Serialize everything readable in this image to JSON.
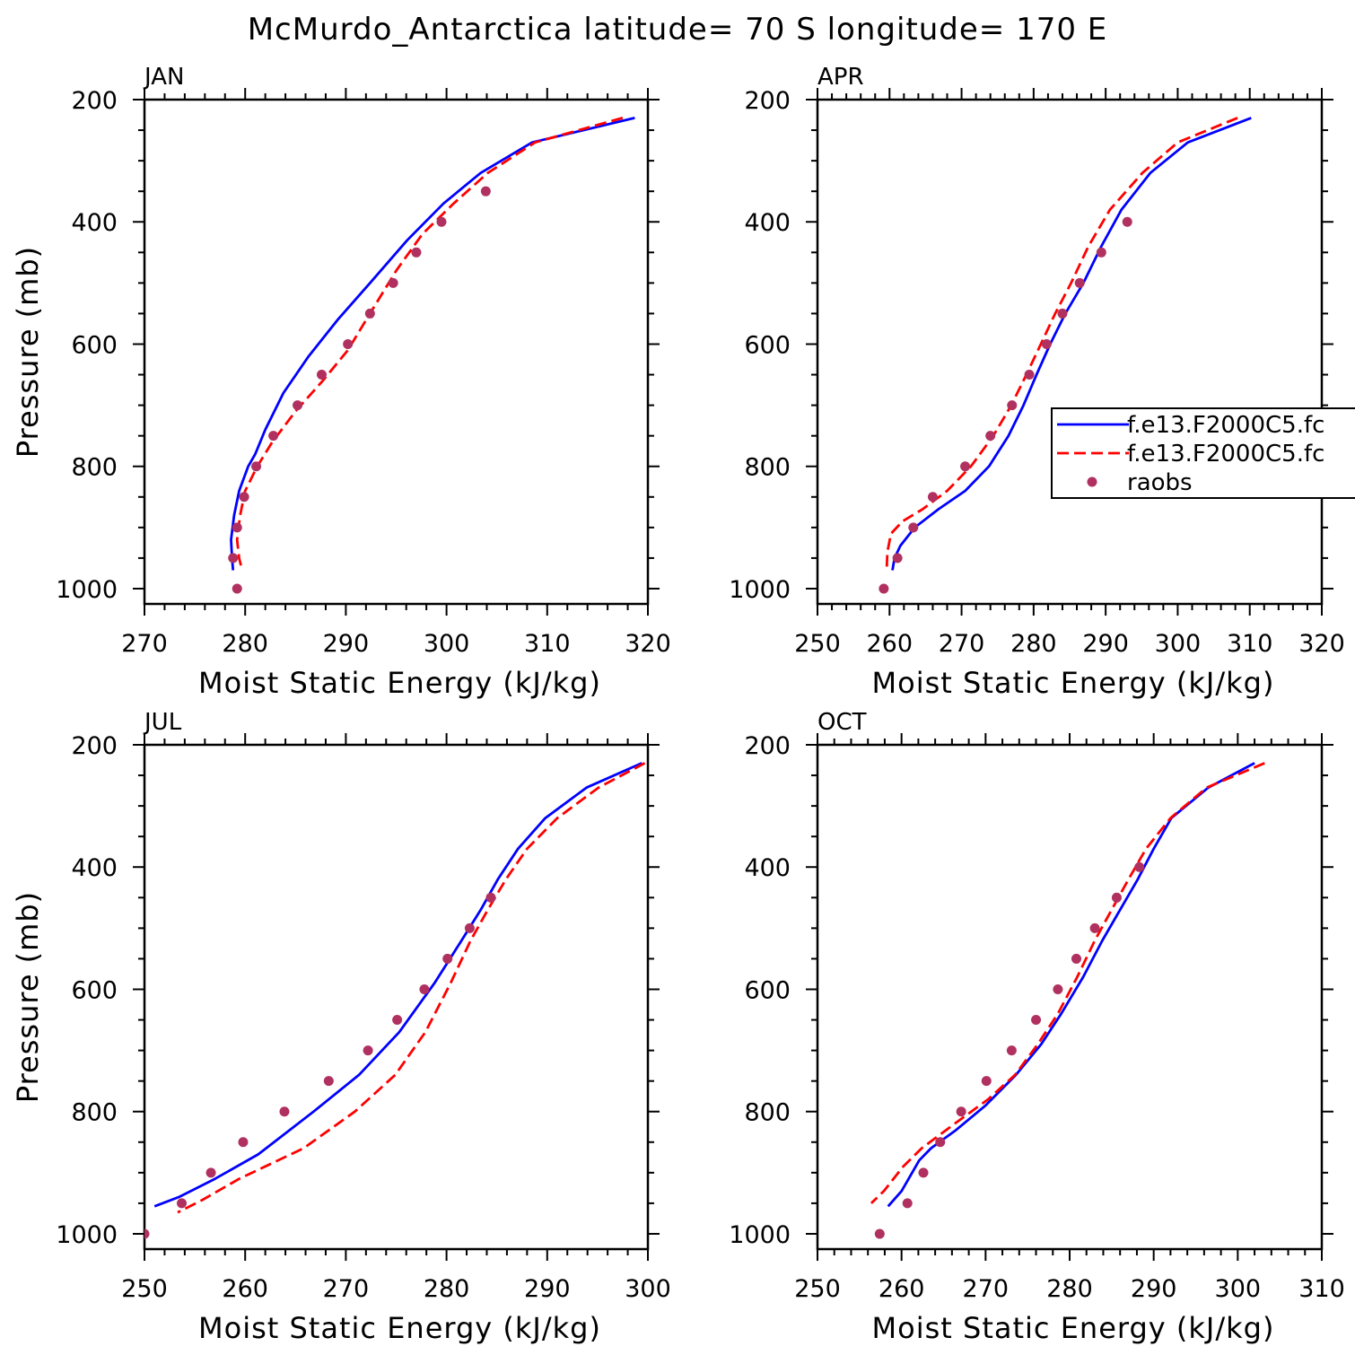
{
  "title": "McMurdo_Antarctica  latitude= 70 S longitude= 170 E",
  "colors": {
    "series1": "#0000ff",
    "series2": "#ff0000",
    "raobs": "#b03060"
  },
  "legend": {
    "panel": 1,
    "entries": [
      {
        "label": "f.e13.F2000C5.fc",
        "style": "solid",
        "color": "#0000ff"
      },
      {
        "label": "f.e13.F2000C5.fc",
        "style": "dashed",
        "color": "#ff0000"
      },
      {
        "label": "raobs",
        "style": "dot",
        "color": "#b03060"
      }
    ]
  },
  "chart_data": [
    {
      "type": "line",
      "panel_label": "JAN",
      "xlabel": "Moist Static Energy (kJ/kg)",
      "ylabel": "Pressure (mb)",
      "xlim": [
        270,
        320
      ],
      "ylim": [
        200,
        1025
      ],
      "xticks": [
        270,
        280,
        290,
        300,
        310,
        320
      ],
      "yticks": [
        200,
        400,
        600,
        800,
        1000
      ],
      "series": [
        {
          "name": "f.e13.F2000C5.fc (solid)",
          "style": "solid",
          "x": [
            318.7,
            308.5,
            303.4,
            299.7,
            296.1,
            292.4,
            289.2,
            286.3,
            283.8,
            282.0,
            281.0,
            280.3,
            279.4,
            278.9,
            278.6,
            278.7,
            278.8
          ],
          "y": [
            230,
            270,
            320,
            370,
            430,
            500,
            560,
            620,
            680,
            740,
            780,
            800,
            840,
            880,
            920,
            950,
            970
          ]
        },
        {
          "name": "f.e13.F2000C5.fc (dashed)",
          "style": "dashed",
          "x": [
            317.5,
            308.8,
            304.1,
            300.7,
            297.6,
            295.0,
            292.4,
            290.2,
            287.7,
            285.0,
            282.7,
            281.2,
            280.0,
            279.5,
            279.2,
            279.4,
            279.7
          ],
          "y": [
            230,
            270,
            320,
            370,
            420,
            480,
            550,
            610,
            660,
            710,
            760,
            800,
            840,
            880,
            920,
            950,
            970
          ]
        },
        {
          "name": "raobs",
          "style": "dot",
          "x": [
            303.9,
            299.5,
            297.0,
            294.7,
            292.4,
            290.2,
            287.6,
            285.2,
            282.8,
            281.1,
            279.9,
            279.2,
            278.8,
            279.2
          ],
          "y": [
            350,
            400,
            450,
            500,
            550,
            600,
            650,
            700,
            750,
            800,
            850,
            900,
            950,
            1000
          ]
        }
      ]
    },
    {
      "type": "line",
      "panel_label": "APR",
      "xlabel": "Moist Static Energy (kJ/kg)",
      "ylabel": "",
      "xlim": [
        250,
        320
      ],
      "ylim": [
        200,
        1025
      ],
      "xticks": [
        250,
        260,
        270,
        280,
        290,
        300,
        310,
        320
      ],
      "yticks": [
        200,
        400,
        600,
        800,
        1000
      ],
      "series": [
        {
          "name": "f.e13.F2000C5.fc (solid)",
          "style": "solid",
          "x": [
            310.2,
            301.4,
            296.2,
            292.2,
            289.4,
            286.9,
            284.4,
            282.3,
            280.4,
            278.6,
            276.5,
            273.8,
            270.5,
            266.8,
            263.5,
            261.5,
            260.7,
            260.4
          ],
          "y": [
            230,
            270,
            320,
            380,
            440,
            500,
            550,
            600,
            650,
            700,
            750,
            800,
            840,
            870,
            900,
            930,
            950,
            970
          ]
        },
        {
          "name": "f.e13.F2000C5.fc (dashed)",
          "style": "dashed",
          "x": [
            308.3,
            300.0,
            295.1,
            290.6,
            287.6,
            285.2,
            283.0,
            281.0,
            279.0,
            276.9,
            274.4,
            271.3,
            268.0,
            264.6,
            261.8,
            260.2,
            259.7,
            259.6
          ],
          "y": [
            230,
            270,
            320,
            380,
            440,
            500,
            550,
            600,
            650,
            700,
            750,
            800,
            840,
            870,
            890,
            910,
            940,
            970
          ]
        },
        {
          "name": "raobs",
          "style": "dot",
          "x": [
            293.0,
            289.4,
            286.4,
            284.0,
            281.8,
            279.4,
            277.0,
            274.0,
            270.5,
            266.0,
            263.3,
            261.1,
            259.2
          ],
          "y": [
            400,
            450,
            500,
            550,
            600,
            650,
            700,
            750,
            800,
            850,
            900,
            950,
            1000
          ]
        }
      ]
    },
    {
      "type": "line",
      "panel_label": "JUL",
      "xlabel": "Moist Static Energy (kJ/kg)",
      "ylabel": "Pressure (mb)",
      "xlim": [
        250,
        300
      ],
      "ylim": [
        200,
        1025
      ],
      "xticks": [
        250,
        260,
        270,
        280,
        290,
        300
      ],
      "yticks": [
        200,
        400,
        600,
        800,
        1000
      ],
      "series": [
        {
          "name": "f.e13.F2000C5.fc (solid)",
          "style": "solid",
          "x": [
            299.4,
            293.9,
            289.8,
            287.1,
            285.1,
            283.4,
            281.5,
            278.8,
            275.3,
            271.3,
            266.8,
            261.3,
            257.0,
            253.4,
            251.0
          ],
          "y": [
            230,
            270,
            320,
            370,
            420,
            470,
            520,
            590,
            670,
            740,
            800,
            870,
            910,
            940,
            955
          ]
        },
        {
          "name": "f.e13.F2000C5.fc (dashed)",
          "style": "dashed",
          "x": [
            299.7,
            295.1,
            291.0,
            288.0,
            285.9,
            284.1,
            282.4,
            280.4,
            277.9,
            274.9,
            270.9,
            265.8,
            259.4,
            255.7,
            253.3
          ],
          "y": [
            230,
            270,
            320,
            370,
            420,
            470,
            520,
            590,
            670,
            740,
            800,
            860,
            910,
            945,
            965
          ]
        },
        {
          "name": "raobs",
          "style": "dot",
          "x": [
            284.4,
            282.3,
            280.1,
            277.8,
            275.1,
            272.2,
            268.3,
            263.9,
            259.8,
            256.6,
            253.7,
            250.0
          ],
          "y": [
            450,
            500,
            550,
            600,
            650,
            700,
            750,
            800,
            850,
            900,
            950,
            1000
          ]
        }
      ]
    },
    {
      "type": "line",
      "panel_label": "OCT",
      "xlabel": "Moist Static Energy (kJ/kg)",
      "ylabel": "",
      "xlim": [
        250,
        310
      ],
      "ylim": [
        200,
        1025
      ],
      "xticks": [
        250,
        260,
        270,
        280,
        290,
        300,
        310
      ],
      "yticks": [
        200,
        400,
        600,
        800,
        1000
      ],
      "series": [
        {
          "name": "f.e13.F2000C5.fc (solid)",
          "style": "solid",
          "x": [
            302.0,
            296.5,
            292.1,
            290.0,
            288.1,
            286.0,
            283.9,
            281.6,
            279.0,
            276.6,
            273.6,
            270.0,
            266.5,
            263.5,
            262.1,
            260.0,
            258.4
          ],
          "y": [
            230,
            270,
            320,
            370,
            420,
            470,
            520,
            580,
            640,
            690,
            740,
            790,
            830,
            860,
            880,
            930,
            955
          ]
        },
        {
          "name": "f.e13.F2000C5.fc (dashed)",
          "style": "dashed",
          "x": [
            303.2,
            296.3,
            292.0,
            289.1,
            287.0,
            285.0,
            283.0,
            280.9,
            278.6,
            276.2,
            273.5,
            270.3,
            266.3,
            262.4,
            260.2,
            257.9,
            256.4
          ],
          "y": [
            230,
            270,
            320,
            370,
            420,
            470,
            520,
            580,
            640,
            690,
            740,
            780,
            820,
            860,
            890,
            930,
            950
          ]
        },
        {
          "name": "raobs",
          "style": "dot",
          "x": [
            288.3,
            285.6,
            283.0,
            280.8,
            278.6,
            276.0,
            273.1,
            270.1,
            267.1,
            264.6,
            262.6,
            260.7,
            257.4
          ],
          "y": [
            400,
            450,
            500,
            550,
            600,
            650,
            700,
            750,
            800,
            850,
            900,
            950,
            1000
          ]
        }
      ]
    }
  ]
}
